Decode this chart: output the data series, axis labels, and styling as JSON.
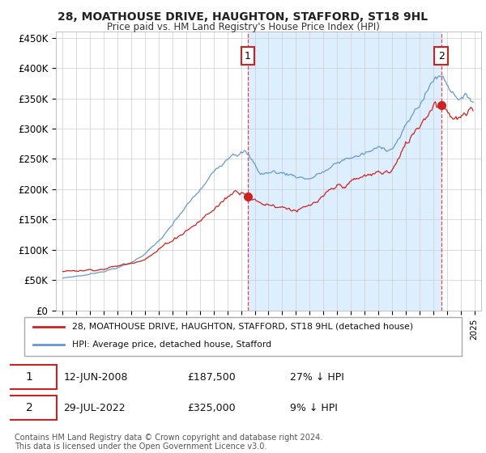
{
  "title": "28, MOATHOUSE DRIVE, HAUGHTON, STAFFORD, ST18 9HL",
  "subtitle": "Price paid vs. HM Land Registry's House Price Index (HPI)",
  "ylabel_ticks": [
    "£0",
    "£50K",
    "£100K",
    "£150K",
    "£200K",
    "£250K",
    "£300K",
    "£350K",
    "£400K",
    "£450K"
  ],
  "ytick_values": [
    0,
    50000,
    100000,
    150000,
    200000,
    250000,
    300000,
    350000,
    400000,
    450000
  ],
  "ylim": [
    0,
    460000
  ],
  "hpi_color": "#6699cc",
  "house_color": "#cc2222",
  "shade_color": "#ddeeff",
  "idx1": 162,
  "idx2": 331,
  "transaction1": {
    "label": "1",
    "date": "12-JUN-2008",
    "price": "£187,500",
    "hpi": "27% ↓ HPI"
  },
  "transaction2": {
    "label": "2",
    "date": "29-JUL-2022",
    "price": "£325,000",
    "hpi": "9% ↓ HPI"
  },
  "legend_house": "28, MOATHOUSE DRIVE, HAUGHTON, STAFFORD, ST18 9HL (detached house)",
  "legend_hpi": "HPI: Average price, detached house, Stafford",
  "footnote": "Contains HM Land Registry data © Crown copyright and database right 2024.\nThis data is licensed under the Open Government Licence v3.0.",
  "background_color": "#ffffff",
  "grid_color": "#cccccc"
}
